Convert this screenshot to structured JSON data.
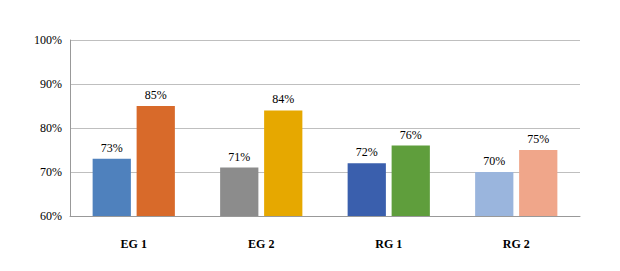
{
  "chart_data": {
    "type": "bar",
    "categories": [
      "EG 1",
      "EG 2",
      "RG 1",
      "RG 2"
    ],
    "series": [
      {
        "values": [
          73,
          71,
          72,
          70
        ],
        "value_labels": [
          "73%",
          "71%",
          "72%",
          "70%"
        ],
        "colors": [
          "#4f81bd",
          "#8c8c8c",
          "#3a5fad",
          "#9ab5dd"
        ]
      },
      {
        "values": [
          85,
          84,
          76,
          75
        ],
        "value_labels": [
          "85%",
          "84%",
          "76%",
          "75%"
        ],
        "colors": [
          "#d86a2a",
          "#e6a800",
          "#5f9e3c",
          "#f0a68a"
        ]
      }
    ],
    "ylim": [
      60,
      100
    ],
    "yticks": [
      {
        "value": 60,
        "label": "60%"
      },
      {
        "value": 70,
        "label": "70%"
      },
      {
        "value": 80,
        "label": "80%"
      },
      {
        "value": 90,
        "label": "90%"
      },
      {
        "value": 100,
        "label": "100%"
      }
    ],
    "grid": true,
    "data_labels": true
  }
}
